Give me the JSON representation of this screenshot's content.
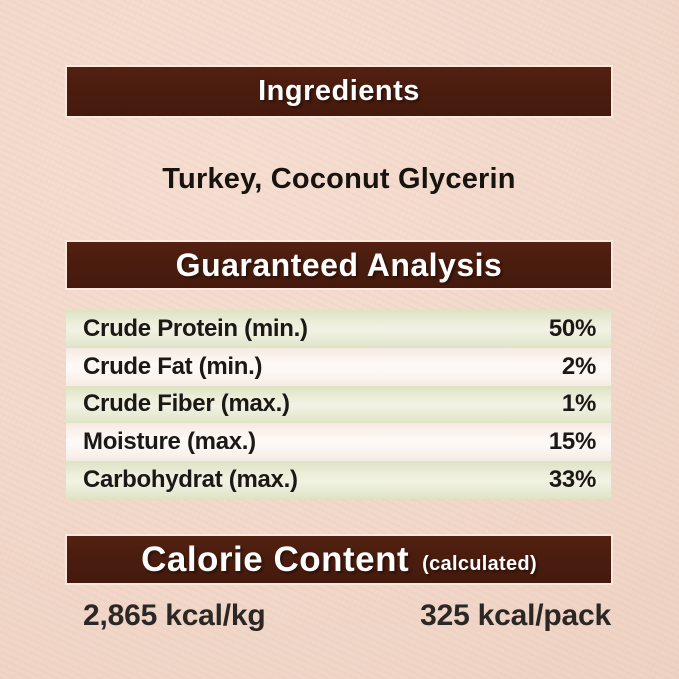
{
  "colors": {
    "background_pink": "#f2d8ca",
    "bar_brown": "#4a1d0f",
    "bar_text_white": "#ffffff",
    "row_green": "#e7ebd2",
    "row_plain": "#fbf5f1",
    "text_dark": "#1b1815"
  },
  "ingredients": {
    "title": "Ingredients",
    "value": "Turkey, Coconut Glycerin"
  },
  "guaranteed_analysis": {
    "title": "Guaranteed Analysis",
    "rows": [
      {
        "label": "Crude Protein (min.)",
        "value": "50%"
      },
      {
        "label": "Crude Fat (min.)",
        "value": "2%"
      },
      {
        "label": "Crude Fiber (max.)",
        "value": "1%"
      },
      {
        "label": "Moisture (max.)",
        "value": "15%"
      },
      {
        "label": "Carbohydrat (max.)",
        "value": "33%"
      }
    ]
  },
  "calorie_content": {
    "title": "Calorie Content",
    "subtitle": "(calculated)",
    "per_kg": "2,865 kcal/kg",
    "per_pack": "325 kcal/pack"
  }
}
